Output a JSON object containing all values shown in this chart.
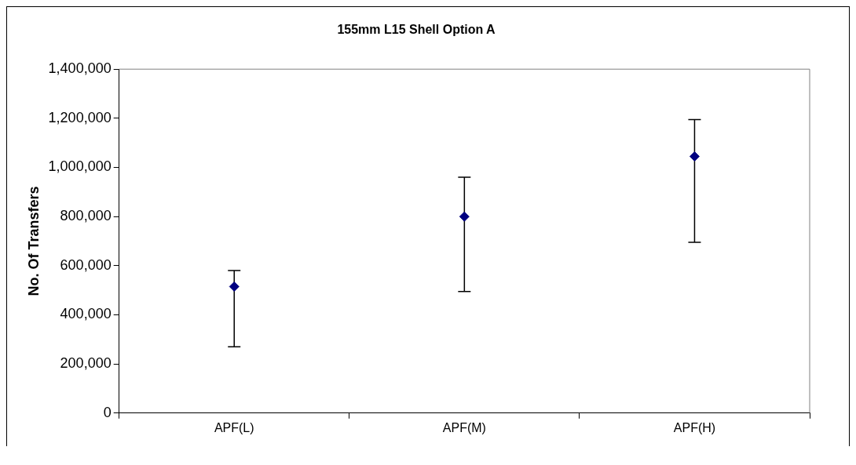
{
  "chart_data": {
    "type": "scatter",
    "title": "155mm L15 Shell Option A",
    "ylabel": "No. Of Transfers",
    "categories": [
      "APF(L)",
      "APF(M)",
      "APF(H)"
    ],
    "series": [
      {
        "color": "#000080",
        "values": [
          515000,
          800000,
          1045000
        ],
        "errors": [
          [
            270000,
            580000
          ],
          [
            495000,
            960000
          ],
          [
            695000,
            1195000
          ]
        ]
      }
    ],
    "ylim": [
      0,
      1400000
    ],
    "yticks": [
      0,
      {
        "value": 200000,
        "label": "200,000"
      },
      {
        "value": 400000,
        "label": "400,000"
      },
      {
        "value": 600000,
        "label": "600,000"
      },
      {
        "value": 800000,
        "label": "800,000"
      },
      {
        "value": 1000000,
        "label": "1,000,000"
      },
      {
        "value": 1200000,
        "label": "1,200,000"
      },
      {
        "value": 1400000,
        "label": "1,400,000"
      }
    ],
    "grid": false,
    "legend": false,
    "marker": "diamond"
  }
}
